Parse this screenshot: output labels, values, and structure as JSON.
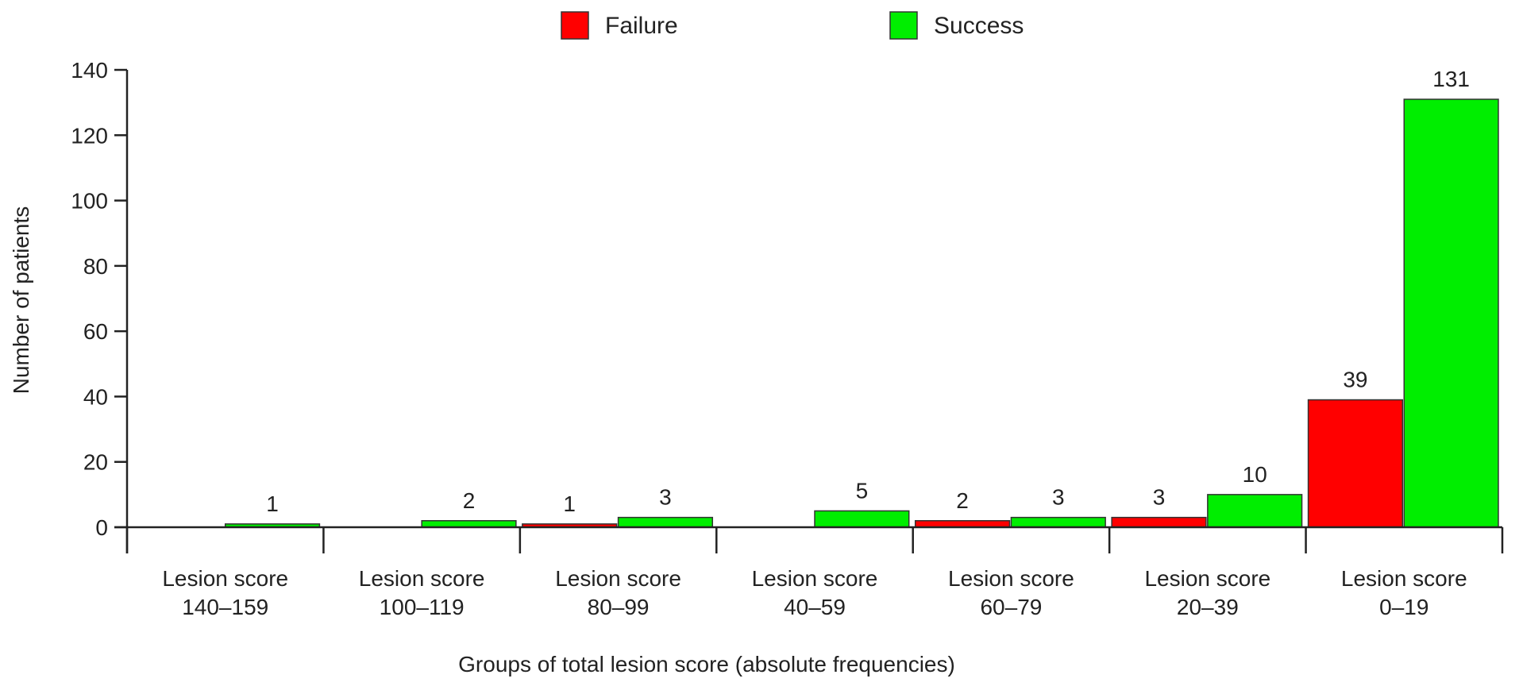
{
  "chart_data": {
    "type": "bar",
    "title": "",
    "xlabel": "Groups of total lesion score (absolute frequencies)",
    "ylabel": "Number of patients",
    "ylim": [
      0,
      140
    ],
    "yticks": [
      0,
      20,
      40,
      60,
      80,
      100,
      120,
      140
    ],
    "grid": false,
    "legend_placement": "top-center",
    "categories": [
      [
        "Lesion score",
        "140–159"
      ],
      [
        "Lesion score",
        "100–119"
      ],
      [
        "Lesion score",
        "80–99"
      ],
      [
        "Lesion score",
        "40–59"
      ],
      [
        "Lesion score",
        "60–79"
      ],
      [
        "Lesion score",
        "20–39"
      ],
      [
        "Lesion score",
        "0–19"
      ]
    ],
    "series": [
      {
        "name": "Failure",
        "color": "#ff0000",
        "values": [
          null,
          null,
          1,
          null,
          2,
          3,
          39
        ]
      },
      {
        "name": "Success",
        "color": "#00ee00",
        "values": [
          1,
          2,
          3,
          5,
          3,
          10,
          131
        ]
      }
    ]
  }
}
